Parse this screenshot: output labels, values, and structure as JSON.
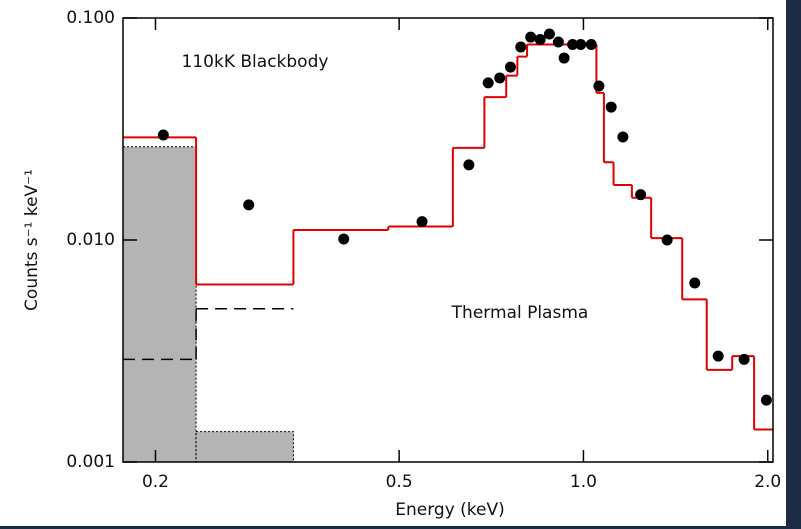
{
  "chart_data": {
    "type": "scatter",
    "x_label": "Energy (keV)",
    "y_label": "Counts s⁻¹ keV⁻¹",
    "xscale": "log",
    "yscale": "log",
    "xlim": [
      0.177,
      2.04
    ],
    "ylim": [
      0.001,
      0.1
    ],
    "xticks": [
      0.2,
      0.5,
      {
        "value": 1,
        "label": "1.0"
      },
      {
        "value": 2,
        "label": "2.0"
      }
    ],
    "yticks": [
      {
        "value": 0.001,
        "label": "0.001"
      },
      {
        "value": 0.01,
        "label": "0.010"
      },
      {
        "value": 0.1,
        "label": "0.100"
      }
    ],
    "annotations": [
      "110kK Blackbody",
      "Thermal Plasma"
    ],
    "points": {
      "color": "#000000",
      "x": [
        0.206,
        0.284,
        0.406,
        0.545,
        0.65,
        0.699,
        0.73,
        0.76,
        0.79,
        0.82,
        0.85,
        0.88,
        0.91,
        0.93,
        0.96,
        0.99,
        1.03,
        1.06,
        1.11,
        1.16,
        1.24,
        1.37,
        1.52,
        1.66,
        1.83,
        1.99
      ],
      "values": [
        0.0297,
        0.0144,
        0.0101,
        0.0121,
        0.0218,
        0.051,
        0.0537,
        0.0601,
        0.074,
        0.082,
        0.08,
        0.0847,
        0.078,
        0.066,
        0.076,
        0.076,
        0.076,
        0.0494,
        0.0397,
        0.0291,
        0.016,
        0.01,
        0.0064,
        0.003,
        0.0029,
        0.0019
      ]
    },
    "model": {
      "color": "#e00000",
      "bins": [
        0.177,
        0.233,
        0.336,
        0.48,
        0.612,
        0.689,
        0.748,
        0.78,
        0.809,
        1.05,
        1.08,
        1.12,
        1.2,
        1.29,
        1.45,
        1.59,
        1.75,
        1.9,
        2.04
      ],
      "values": [
        0.029,
        0.0063,
        0.0111,
        0.0115,
        0.026,
        0.044,
        0.055,
        0.067,
        0.076,
        0.046,
        0.0224,
        0.0177,
        0.0155,
        0.0102,
        0.0054,
        0.0026,
        0.003,
        0.0014
      ]
    },
    "blackbody": {
      "color": "#b4b4b4",
      "bins": [
        0.177,
        0.233,
        0.336
      ],
      "values": [
        0.0263,
        0.00137
      ]
    },
    "plasma": {
      "color": "#000000",
      "bins": [
        0.177,
        0.233,
        0.336
      ],
      "values": [
        0.0029,
        0.0049
      ]
    }
  }
}
